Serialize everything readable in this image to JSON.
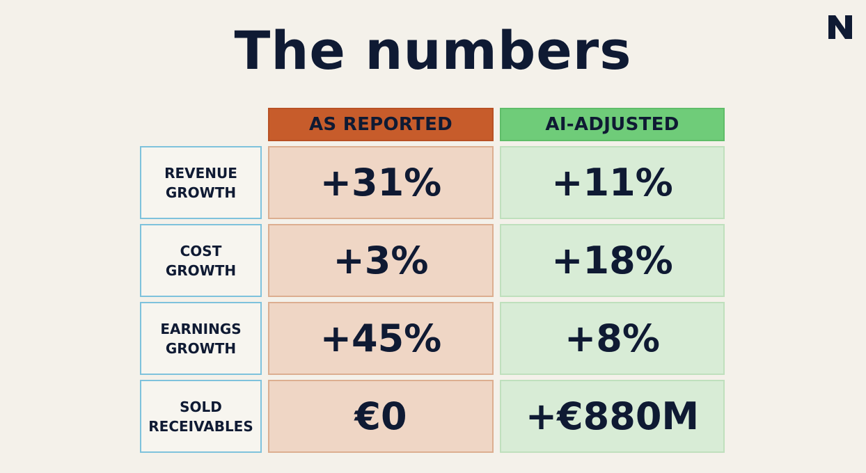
{
  "slide": {
    "title": "The numbers",
    "logo_icon": "n-logo-icon"
  },
  "table": {
    "headers": {
      "reported": "AS REPORTED",
      "adjusted": "AI-ADJUSTED"
    },
    "rows": [
      {
        "label_line1": "REVENUE",
        "label_line2": "GROWTH",
        "reported": "+31%",
        "adjusted": "+11%"
      },
      {
        "label_line1": "COST",
        "label_line2": "GROWTH",
        "reported": "+3%",
        "adjusted": "+18%"
      },
      {
        "label_line1": "EARNINGS",
        "label_line2": "GROWTH",
        "reported": "+45%",
        "adjusted": "+8%"
      },
      {
        "label_line1": "SOLD",
        "label_line2": "RECEIVABLES",
        "reported": "€0",
        "adjusted": "+€880M"
      }
    ]
  },
  "colors": {
    "reported_header": "#c75c2b",
    "adjusted_header": "#6fcc79",
    "reported_cell": "#efd6c5",
    "adjusted_cell": "#d8ecd6",
    "label_border": "#7ec2dc",
    "text": "#0f1a33",
    "background": "#f4f1ea"
  }
}
